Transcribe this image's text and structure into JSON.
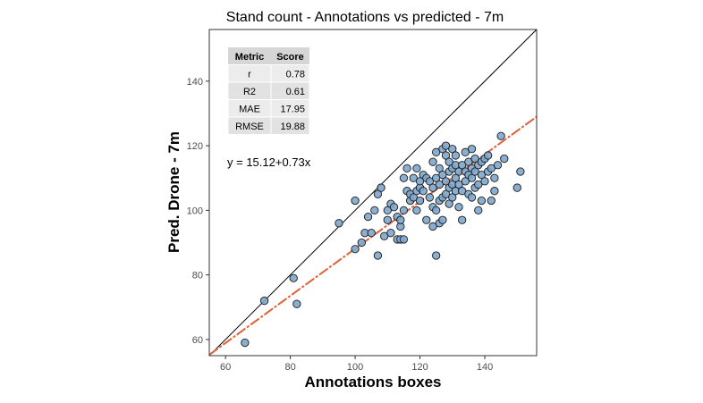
{
  "chart_data": {
    "type": "scatter",
    "title": "Stand count - Annotations vs predicted - 7m",
    "xlabel": "Annotations boxes",
    "ylabel": "Pred. Drone - 7m",
    "xlim": [
      55,
      156
    ],
    "ylim": [
      55,
      156
    ],
    "x_ticks": [
      60,
      80,
      100,
      120,
      140
    ],
    "y_ticks": [
      60,
      80,
      100,
      120,
      140
    ],
    "grid": false,
    "point_color": "#7ea6cc",
    "fit_color": "#e0603a",
    "identity_line": true,
    "fit": {
      "intercept": 15.12,
      "slope": 0.73
    },
    "equation": "y = 15.12+0.73x",
    "metrics_table": {
      "headers": [
        "Metric",
        "Score"
      ],
      "rows": [
        [
          "r",
          "0.78"
        ],
        [
          "R2",
          "0.61"
        ],
        [
          "MAE",
          "17.95"
        ],
        [
          "RMSE",
          "19.88"
        ]
      ]
    },
    "points": [
      [
        66,
        59
      ],
      [
        72,
        72
      ],
      [
        81,
        79
      ],
      [
        82,
        71
      ],
      [
        95,
        96
      ],
      [
        100,
        88
      ],
      [
        100,
        103
      ],
      [
        102,
        90
      ],
      [
        103,
        93
      ],
      [
        104,
        98
      ],
      [
        105,
        93
      ],
      [
        106,
        100
      ],
      [
        107,
        86
      ],
      [
        107,
        105
      ],
      [
        108,
        107
      ],
      [
        109,
        92
      ],
      [
        110,
        97
      ],
      [
        110,
        100
      ],
      [
        111,
        93
      ],
      [
        111,
        102
      ],
      [
        112,
        101
      ],
      [
        113,
        91
      ],
      [
        113,
        98
      ],
      [
        114,
        91
      ],
      [
        114,
        95
      ],
      [
        114,
        97
      ],
      [
        115,
        91
      ],
      [
        115,
        100
      ],
      [
        115,
        110
      ],
      [
        116,
        106
      ],
      [
        116,
        113
      ],
      [
        117,
        103
      ],
      [
        117,
        105
      ],
      [
        118,
        104
      ],
      [
        118,
        110
      ],
      [
        119,
        100
      ],
      [
        119,
        106
      ],
      [
        119,
        113
      ],
      [
        120,
        103
      ],
      [
        120,
        107
      ],
      [
        120,
        109
      ],
      [
        121,
        106
      ],
      [
        121,
        111
      ],
      [
        122,
        97
      ],
      [
        122,
        110
      ],
      [
        123,
        104
      ],
      [
        123,
        109
      ],
      [
        124,
        95
      ],
      [
        124,
        101
      ],
      [
        124,
        107
      ],
      [
        124,
        115
      ],
      [
        125,
        86
      ],
      [
        125,
        100
      ],
      [
        125,
        110
      ],
      [
        125,
        118
      ],
      [
        126,
        96
      ],
      [
        126,
        103
      ],
      [
        126,
        108
      ],
      [
        126,
        113
      ],
      [
        127,
        97
      ],
      [
        127,
        104
      ],
      [
        127,
        111
      ],
      [
        127,
        119
      ],
      [
        128,
        105
      ],
      [
        128,
        109
      ],
      [
        128,
        117
      ],
      [
        128,
        120
      ],
      [
        129,
        102
      ],
      [
        129,
        107
      ],
      [
        129,
        112
      ],
      [
        129,
        115
      ],
      [
        130,
        104
      ],
      [
        130,
        108
      ],
      [
        130,
        113
      ],
      [
        130,
        119
      ],
      [
        131,
        106
      ],
      [
        131,
        110
      ],
      [
        131,
        114
      ],
      [
        131,
        117
      ],
      [
        132,
        101
      ],
      [
        132,
        108
      ],
      [
        132,
        112
      ],
      [
        133,
        97
      ],
      [
        133,
        106
      ],
      [
        133,
        114
      ],
      [
        134,
        109
      ],
      [
        134,
        112
      ],
      [
        134,
        118
      ],
      [
        135,
        105
      ],
      [
        135,
        111
      ],
      [
        135,
        115
      ],
      [
        136,
        104
      ],
      [
        136,
        110
      ],
      [
        136,
        113
      ],
      [
        136,
        119
      ],
      [
        137,
        107
      ],
      [
        137,
        112
      ],
      [
        137,
        116
      ],
      [
        138,
        100
      ],
      [
        138,
        108
      ],
      [
        138,
        114
      ],
      [
        139,
        103
      ],
      [
        139,
        111
      ],
      [
        139,
        115
      ],
      [
        140,
        109
      ],
      [
        140,
        116
      ],
      [
        141,
        112
      ],
      [
        141,
        117
      ],
      [
        142,
        103
      ],
      [
        142,
        113
      ],
      [
        143,
        106
      ],
      [
        143,
        110
      ],
      [
        144,
        114
      ],
      [
        145,
        123
      ],
      [
        146,
        116
      ],
      [
        150,
        107
      ],
      [
        151,
        112
      ]
    ]
  }
}
